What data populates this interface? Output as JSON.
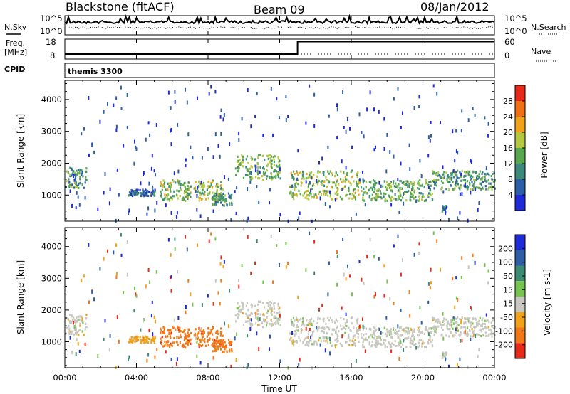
{
  "chart_data": {
    "type": "heatmap",
    "header": {
      "title": "Blackstone (fitACF)",
      "beam": "Beam 09",
      "date": "08/Jan/2012"
    },
    "time_axis": {
      "label": "Time UT",
      "ticks": [
        "00:00",
        "04:00",
        "08:00",
        "12:00",
        "16:00",
        "20:00",
        "00:00"
      ],
      "range_hours": [
        0,
        24
      ]
    },
    "noise_panel": {
      "left_label": "N.Sky",
      "right_label": "N.Search",
      "left_ticks": [
        "10^5",
        "10^0"
      ],
      "right_ticks": [
        "10^5",
        "10^0"
      ]
    },
    "freq_panel": {
      "left_label_line1": "Freq.",
      "left_label_line2": "[MHz]",
      "right_label": "Nave",
      "left_ticks": [
        18,
        8
      ],
      "right_ticks": [
        60,
        0
      ],
      "freq_series": [
        {
          "t": 0.0,
          "mhz": 8.0
        },
        {
          "t": 13.0,
          "mhz": 8.0
        },
        {
          "t": 13.0,
          "mhz": 18.0
        },
        {
          "t": 24.0,
          "mhz": 18.0
        }
      ]
    },
    "cpid": {
      "label": "CPID",
      "program": "themis 3300"
    },
    "power_panel": {
      "ylabel": "Slant Range [km]",
      "yticks": [
        1000,
        2000,
        3000,
        4000
      ],
      "ylim": [
        180,
        4600
      ],
      "colorbar_label": "Power [dB]",
      "colorbar_ticks": [
        4,
        8,
        12,
        16,
        20,
        24,
        28
      ],
      "colorbar_range": [
        0,
        32
      ],
      "colors": [
        "#1f2bd6",
        "#2d5fa8",
        "#3b8a7a",
        "#58a850",
        "#b6c842",
        "#f0a21a",
        "#f07018",
        "#e62a1a"
      ]
    },
    "velocity_panel": {
      "ylabel": "Slant Range [km]",
      "yticks": [
        1000,
        2000,
        3000,
        4000
      ],
      "ylim": [
        180,
        4600
      ],
      "colorbar_label": "Velocity [m s-1]",
      "colorbar_ticks": [
        200,
        100,
        50,
        15,
        -15,
        -50,
        -100,
        -200
      ],
      "colors": [
        "#1f2bd6",
        "#2e5ea6",
        "#3d8a72",
        "#78c450",
        "#c8c8c0",
        "#f0a21a",
        "#f07818",
        "#e62a1a"
      ]
    },
    "echo_regions": [
      {
        "t0": 0.0,
        "t1": 1.2,
        "r0": 1250,
        "r1": 1900,
        "vel_class": 4,
        "power": 10
      },
      {
        "t0": 5.3,
        "t1": 8.8,
        "r0": 850,
        "r1": 1500,
        "vel_class": 6,
        "power": 14
      },
      {
        "t0": 8.2,
        "t1": 9.3,
        "r0": 700,
        "r1": 1100,
        "vel_class": 6,
        "power": 10
      },
      {
        "t0": 9.5,
        "t1": 12.0,
        "r0": 1500,
        "r1": 2300,
        "vel_class": 4,
        "power": 12
      },
      {
        "t0": 12.5,
        "t1": 16.5,
        "r0": 900,
        "r1": 1800,
        "vel_class": 4,
        "power": 14
      },
      {
        "t0": 16.5,
        "t1": 20.5,
        "r0": 850,
        "r1": 1500,
        "vel_class": 4,
        "power": 12
      },
      {
        "t0": 20.5,
        "t1": 24.0,
        "r0": 1200,
        "r1": 1800,
        "vel_class": 4,
        "power": 10
      },
      {
        "t0": 21.0,
        "t1": 21.3,
        "r0": 500,
        "r1": 700,
        "vel_class": 4,
        "power": 6
      },
      {
        "t0": 3.5,
        "t1": 5.0,
        "r0": 1000,
        "r1": 1200,
        "vel_class": 5,
        "power": 6
      }
    ]
  }
}
